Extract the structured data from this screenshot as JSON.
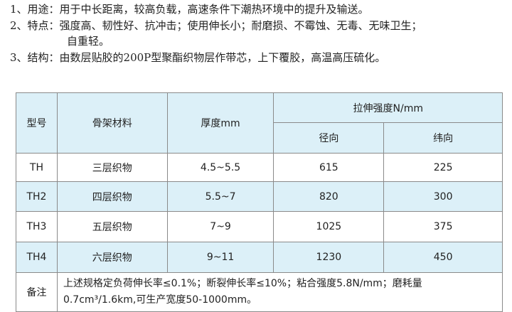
{
  "intro": [
    "1、用途：用于中长距离，较高负载，高速条件下潮热环境中的提升及输送。",
    "2、特点：强度高、韧性好、抗冲击；使用伸长小；耐磨损、不霉蚀、无毒、无味卫生；",
    "自重轻。",
    "3、结构：由数层贴胶的200P型聚酯织物层作带芯，上下覆胶，高温高压硫化。"
  ],
  "table": {
    "headers": {
      "model": "型号",
      "material": "骨架材料",
      "thickness": "厚度mm",
      "tensile": "拉伸强度N/mm",
      "warp": "径向",
      "weft": "纬向"
    },
    "rows": [
      [
        "TH",
        "三层织物",
        "4.5~5.5",
        "615",
        "225"
      ],
      [
        "TH2",
        "四层织物",
        "5.5~7",
        "820",
        "300"
      ],
      [
        "TH3",
        "五层织物",
        "7~9",
        "1025",
        "375"
      ],
      [
        "TH4",
        "六层织物",
        "9~11",
        "1230",
        "450"
      ]
    ],
    "remarks_label": "备注",
    "remarks": [
      "上述规格定负荷伸长率≤0.1%；断裂伸长率≤10%；粘合强度5.8N/mm；磨耗量",
      "0.7cm³/1.6km,可生产宽度50-1000mm。"
    ]
  },
  "colors": {
    "header_bg": "#dcf0f8",
    "border": "#8a8a8a"
  }
}
